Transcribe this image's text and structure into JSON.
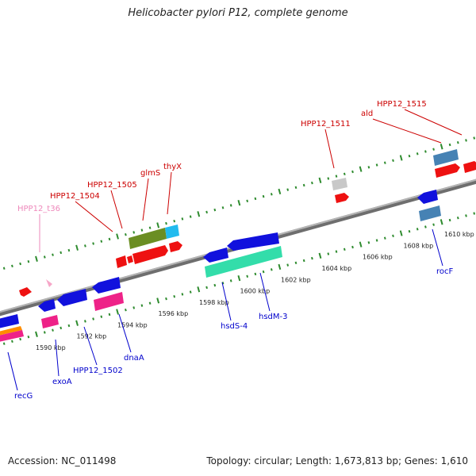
{
  "title": "Helicobacter pylori P12, complete genome",
  "footer": {
    "accession": "Accession: NC_011498",
    "summary": "Topology: circular; Length: 1,673,813 bp; Genes: 1,610"
  },
  "colors": {
    "backbone": "#8c8c8c",
    "ticks": "#2e8b2e",
    "label_top": "#cc0000",
    "label_top_trna": "#ee88bb",
    "label_bottom": "#0000cc"
  },
  "ticks": [
    {
      "label": "1590 kbp"
    },
    {
      "label": "1592 kbp"
    },
    {
      "label": "1594 kbp"
    },
    {
      "label": "1596 kbp"
    },
    {
      "label": "1598 kbp"
    },
    {
      "label": "1600 kbp"
    },
    {
      "label": "1602 kbp"
    },
    {
      "label": "1604 kbp"
    },
    {
      "label": "1606 kbp"
    },
    {
      "label": "1608 kbp"
    },
    {
      "label": "1610 kbp"
    }
  ],
  "top_labels": [
    {
      "name": "HPP12_t36",
      "kind": "trna"
    },
    {
      "name": "HPP12_1504",
      "kind": "gene"
    },
    {
      "name": "HPP12_1505",
      "kind": "gene"
    },
    {
      "name": "glmS",
      "kind": "gene"
    },
    {
      "name": "thyX",
      "kind": "gene"
    },
    {
      "name": "HPP12_1511",
      "kind": "gene"
    },
    {
      "name": "ald",
      "kind": "gene"
    },
    {
      "name": "HPP12_1515",
      "kind": "gene"
    }
  ],
  "bottom_labels": [
    {
      "name": "recG"
    },
    {
      "name": "exoA"
    },
    {
      "name": "HPP12_1502"
    },
    {
      "name": "dnaA"
    },
    {
      "name": "hsdS-4"
    },
    {
      "name": "hsdM-3"
    },
    {
      "name": "rocF"
    }
  ]
}
